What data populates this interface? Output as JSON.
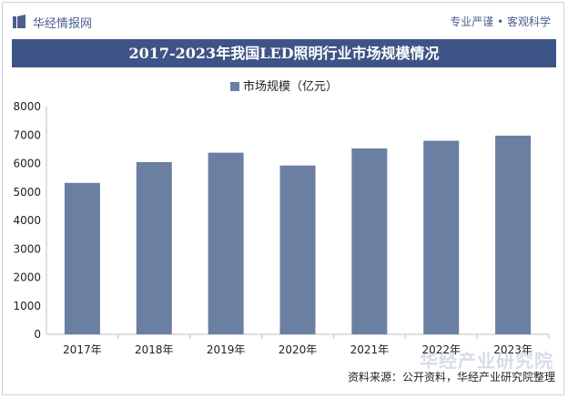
{
  "header": {
    "brand": "华经情报网",
    "tagline": "专业严谨 • 客观科学"
  },
  "title": "2017-2023年我国LED照明行业市场规模情况",
  "source": "资料来源：公开资料，华经产业研究院整理",
  "watermark": "华经产业研究院",
  "colors": {
    "bar": "#6a7fa2",
    "title_bg": "#3f5486",
    "brand": "#4a5f8e"
  },
  "chart_data": {
    "type": "bar",
    "categories": [
      "2017年",
      "2018年",
      "2019年",
      "2020年",
      "2021年",
      "2022年",
      "2023年"
    ],
    "series": [
      {
        "name": "市场规模（亿元）",
        "values": [
          5320,
          6050,
          6380,
          5930,
          6530,
          6800,
          6980
        ]
      }
    ],
    "ylim": [
      0,
      8000
    ],
    "yticks": [
      0,
      1000,
      2000,
      3000,
      4000,
      5000,
      6000,
      7000,
      8000
    ],
    "legend_position": "top-center",
    "grid": false
  }
}
